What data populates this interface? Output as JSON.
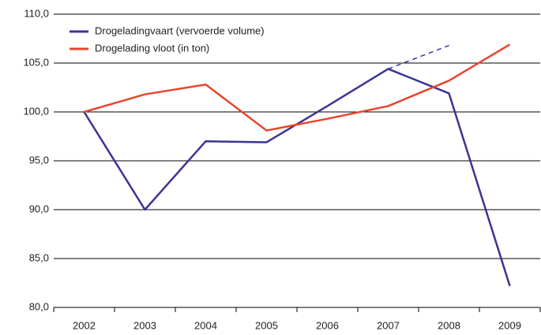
{
  "chart_data": {
    "type": "line",
    "categories": [
      "2002",
      "2003",
      "2004",
      "2005",
      "2006",
      "2007",
      "2008",
      "2009"
    ],
    "series": [
      {
        "name": "Drogeladingvaart (vervoerde volume)",
        "color": "#3b3494",
        "values": [
          100,
          90,
          97,
          96.9,
          100.6,
          104.4,
          101.9,
          82.2
        ],
        "projected_values": [
          null,
          null,
          null,
          null,
          null,
          104.4,
          106.8,
          null
        ]
      },
      {
        "name": "Drogelading vloot (in ton)",
        "color": "#e8452c",
        "values": [
          100,
          101.8,
          102.8,
          98.1,
          99.3,
          100.6,
          103.2,
          106.9
        ]
      }
    ],
    "ylim": [
      80,
      110
    ],
    "yticks": [
      {
        "value": 80,
        "label": "80,0"
      },
      {
        "value": 85,
        "label": "85,0"
      },
      {
        "value": 90,
        "label": "90,0"
      },
      {
        "value": 95,
        "label": "95,0"
      },
      {
        "value": 100,
        "label": "100,0"
      },
      {
        "value": 105,
        "label": "105,0"
      },
      {
        "value": 110,
        "label": "110,0"
      }
    ],
    "grid": true,
    "legend": "top-left"
  }
}
